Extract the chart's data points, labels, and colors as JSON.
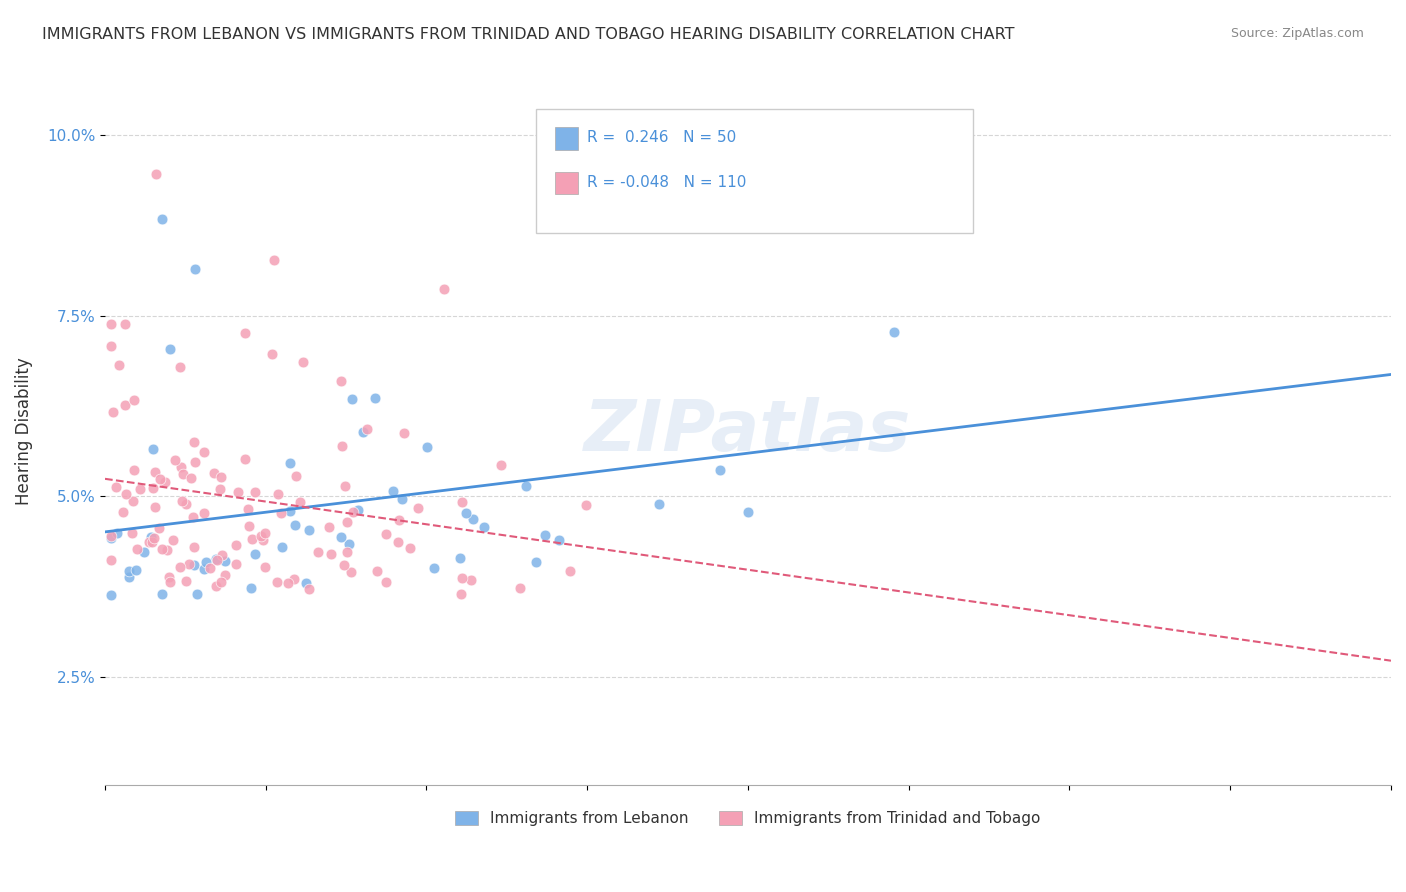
{
  "title": "IMMIGRANTS FROM LEBANON VS IMMIGRANTS FROM TRINIDAD AND TOBAGO HEARING DISABILITY CORRELATION CHART",
  "source": "Source: ZipAtlas.com",
  "ylabel": "Hearing Disability",
  "yticks": [
    "2.5%",
    "5.0%",
    "7.5%",
    "10.0%"
  ],
  "ytick_vals": [
    0.025,
    0.05,
    0.075,
    0.1
  ],
  "xlim": [
    0.0,
    0.2
  ],
  "ylim": [
    0.01,
    0.108
  ],
  "legend_blue_R": "0.246",
  "legend_blue_N": "50",
  "legend_pink_R": "-0.048",
  "legend_pink_N": "110",
  "blue_color": "#7fb3e8",
  "pink_color": "#f4a0b5",
  "trend_blue_color": "#4a90d9",
  "trend_pink_color": "#e05a7a",
  "background_color": "#ffffff",
  "grid_color": "#cccccc",
  "watermark": "ZIPatlas"
}
